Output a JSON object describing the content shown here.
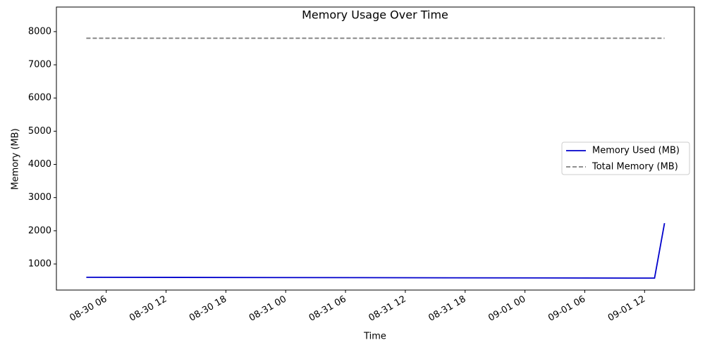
{
  "chart_data": {
    "type": "line",
    "title": "Memory Usage Over Time",
    "x_label": "Time",
    "y_label": "Memory (MB)",
    "x": [
      "08-30 04",
      "09-01 13",
      "09-01 14"
    ],
    "series": [
      {
        "name": "Memory Used (MB)",
        "color": "#0000cc",
        "dash": false,
        "values": [
          600,
          575,
          2230
        ]
      },
      {
        "name": "Total Memory (MB)",
        "color": "#808080",
        "dash": true,
        "values": [
          7800,
          7800,
          7800
        ]
      }
    ],
    "xlim": [
      "08-30 01",
      "09-01 17"
    ],
    "xticks": [
      "08-30 06",
      "08-30 12",
      "08-30 18",
      "08-31 00",
      "08-31 06",
      "08-31 12",
      "08-31 18",
      "09-01 00",
      "09-01 06",
      "09-01 12"
    ],
    "ylim": [
      215,
      8740
    ],
    "yticks": [
      1000,
      2000,
      3000,
      4000,
      5000,
      6000,
      7000,
      8000
    ],
    "legend": "right",
    "grid": false
  }
}
